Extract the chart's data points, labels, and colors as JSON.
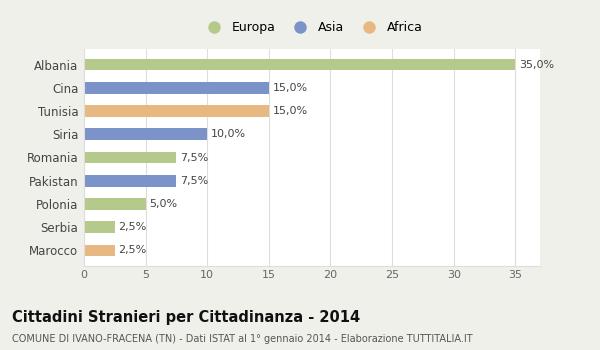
{
  "categories": [
    "Marocco",
    "Serbia",
    "Polonia",
    "Pakistan",
    "Romania",
    "Siria",
    "Tunisia",
    "Cina",
    "Albania"
  ],
  "values": [
    2.5,
    2.5,
    5.0,
    7.5,
    7.5,
    10.0,
    15.0,
    15.0,
    35.0
  ],
  "colors": [
    "#e8b882",
    "#b5c98a",
    "#b5c98a",
    "#7b93c9",
    "#b5c98a",
    "#7b93c9",
    "#e8b882",
    "#7b93c9",
    "#b5c98a"
  ],
  "labels": [
    "2,5%",
    "2,5%",
    "5,0%",
    "7,5%",
    "7,5%",
    "10,0%",
    "15,0%",
    "15,0%",
    "35,0%"
  ],
  "legend": {
    "Europa": "#b5c98a",
    "Asia": "#7b93c9",
    "Africa": "#e8b882"
  },
  "xlim": [
    0,
    37
  ],
  "xticks": [
    0,
    5,
    10,
    15,
    20,
    25,
    30,
    35
  ],
  "title": "Cittadini Stranieri per Cittadinanza - 2014",
  "subtitle": "COMUNE DI IVANO-FRACENA (TN) - Dati ISTAT al 1° gennaio 2014 - Elaborazione TUTTITALIA.IT",
  "bg_color": "#f0f0eb",
  "bar_bg_color": "#ffffff",
  "grid_color": "#dddddd",
  "bar_height": 0.5
}
